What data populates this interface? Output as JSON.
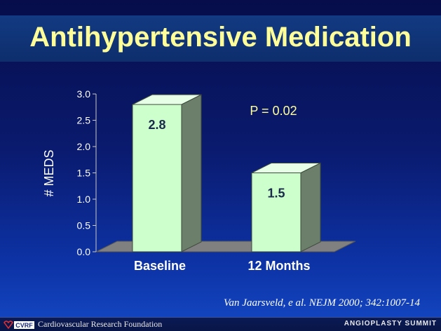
{
  "slide": {
    "title": "Antihypertensive Medication",
    "citation": "Van Jaarsveld, e al. NEJM 2000; 342:1007-14"
  },
  "footer": {
    "logo_text": "CVRF",
    "organization": "Cardiovascular Research Foundation",
    "summit": "ANGIOPLASTY SUMMIT"
  },
  "colors": {
    "title": "#ffff99",
    "bar_front": "#ccffcc",
    "bar_side": "#6b7f6b",
    "annotation": "#ffff99",
    "floor": "#808080"
  },
  "chart_data": {
    "type": "bar",
    "categories": [
      "Baseline",
      "12 Months"
    ],
    "values": [
      2.8,
      1.5
    ],
    "data_labels": [
      "2.8",
      "1.5"
    ],
    "ylabel": "# MEDS",
    "ylim": [
      0,
      3.0
    ],
    "yticks": [
      "0.0",
      "0.5",
      "1.0",
      "1.5",
      "2.0",
      "2.5",
      "3.0"
    ],
    "annotation": "P = 0.02",
    "grid": false,
    "style": "3d"
  }
}
